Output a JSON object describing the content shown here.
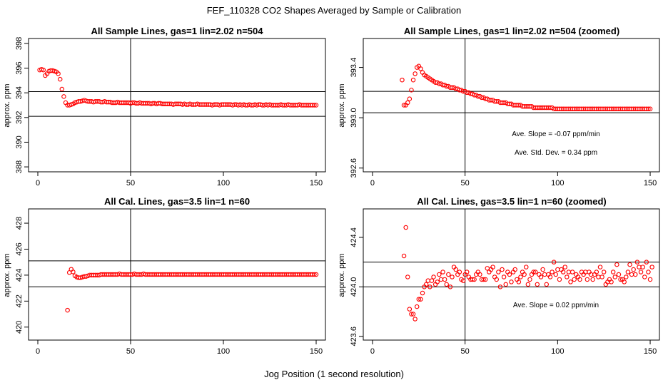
{
  "page": {
    "title": "FEF_110328  CO2 Shapes Averaged by Sample or Calibration",
    "xlabel": "Jog Position (1 second resolution)"
  },
  "colors": {
    "points": "#ff0000",
    "lines": "#000000",
    "background": "#ffffff"
  },
  "chart_data": [
    {
      "type": "scatter",
      "title": "All Sample Lines, gas=1 lin=2.02 n=504",
      "ylabel": "approx. ppm",
      "xlim": [
        -5,
        155
      ],
      "ylim": [
        387.6,
        398.4
      ],
      "xticks": [
        "0",
        "50",
        "100",
        "150"
      ],
      "yticks": [
        "388",
        "390",
        "392",
        "394",
        "396",
        "398"
      ],
      "hlines": [
        394.1,
        392.1
      ],
      "vline": 50,
      "annotations": [],
      "x_start": 1,
      "y": [
        395.85,
        395.9,
        395.85,
        395.4,
        395.55,
        395.75,
        395.8,
        395.8,
        395.75,
        395.7,
        395.55,
        395.1,
        394.3,
        393.7,
        393.2,
        393.0,
        393.0,
        393.05,
        393.1,
        393.2,
        393.25,
        393.3,
        393.3,
        393.35,
        393.4,
        393.35,
        393.3,
        393.3,
        393.3,
        393.25,
        393.3,
        393.3,
        393.3,
        393.25,
        393.25,
        393.3,
        393.25,
        393.25,
        393.25,
        393.2,
        393.2,
        393.2,
        393.25,
        393.2,
        393.2,
        393.2,
        393.2,
        393.2,
        393.2,
        393.15,
        393.2,
        393.2,
        393.15,
        393.15,
        393.2,
        393.15,
        393.15,
        393.15,
        393.15,
        393.15,
        393.1,
        393.15,
        393.15,
        393.1,
        393.15,
        393.15,
        393.1,
        393.1,
        393.1,
        393.1,
        393.1,
        393.1,
        393.05,
        393.1,
        393.1,
        393.1,
        393.1,
        393.05,
        393.1,
        393.05,
        393.05,
        393.1,
        393.05,
        393.05,
        393.05,
        393.1,
        393.05,
        393.05,
        393.05,
        393.05,
        393.05,
        393.05,
        393.05,
        393.0,
        393.05,
        393.05,
        393.05,
        393.0,
        393.05,
        393.05,
        393.05,
        393.05,
        393.05,
        393.05,
        393.0,
        393.05,
        393.05,
        393.0,
        393.05,
        393.0,
        393.05,
        393.0,
        393.0,
        393.05,
        393.0,
        393.0,
        393.05,
        393.0,
        393.05,
        393.05,
        393.0,
        393.0,
        393.05,
        393.0,
        393.05,
        393.0,
        393.0,
        393.0,
        393.0,
        393.0,
        393.05,
        393.0,
        393.0,
        393.0,
        393.05,
        393.0,
        393.0,
        393.0,
        393.0,
        393.0,
        393.05,
        393.0,
        393.0,
        393.0,
        393.0,
        393.0,
        393.0,
        393.0,
        393.0,
        393.0
      ]
    },
    {
      "type": "scatter",
      "title": "All Sample Lines, gas=1 lin=2.02 n=504 (zoomed)",
      "ylabel": "approx. ppm",
      "xlim": [
        -5,
        155
      ],
      "ylim": [
        392.57,
        393.63
      ],
      "xticks": [
        "0",
        "50",
        "100",
        "150"
      ],
      "yticks": [
        "392.6",
        "393.0",
        "393.4"
      ],
      "hlines": [
        393.21,
        393.04
      ],
      "vline": 50,
      "annotations": [
        "Ave. Slope =  -0.07  ppm/min",
        "Ave. Std. Dev. =  0.34  ppm"
      ],
      "x_start": 16,
      "y": [
        393.3,
        393.1,
        393.1,
        393.12,
        393.15,
        393.22,
        393.3,
        393.35,
        393.4,
        393.41,
        393.39,
        393.36,
        393.34,
        393.33,
        393.32,
        393.31,
        393.3,
        393.29,
        393.28,
        393.28,
        393.27,
        393.27,
        393.26,
        393.26,
        393.25,
        393.25,
        393.24,
        393.24,
        393.24,
        393.23,
        393.23,
        393.22,
        393.22,
        393.21,
        393.21,
        393.2,
        393.2,
        393.19,
        393.19,
        393.18,
        393.18,
        393.17,
        393.17,
        393.16,
        393.16,
        393.15,
        393.15,
        393.14,
        393.14,
        393.14,
        393.13,
        393.13,
        393.13,
        393.12,
        393.12,
        393.12,
        393.12,
        393.11,
        393.11,
        393.11,
        393.1,
        393.1,
        393.1,
        393.1,
        393.1,
        393.09,
        393.09,
        393.09,
        393.09,
        393.09,
        393.09,
        393.08,
        393.08,
        393.08,
        393.08,
        393.08,
        393.08,
        393.08,
        393.08,
        393.08,
        393.08,
        393.08,
        393.07,
        393.07,
        393.07,
        393.07,
        393.07,
        393.07,
        393.07,
        393.07,
        393.07,
        393.07,
        393.07,
        393.07,
        393.07,
        393.07,
        393.07,
        393.07,
        393.07,
        393.07,
        393.07,
        393.07,
        393.07,
        393.07,
        393.07,
        393.07,
        393.07,
        393.07,
        393.07,
        393.07,
        393.07,
        393.07,
        393.07,
        393.07,
        393.07,
        393.07,
        393.07,
        393.07,
        393.07,
        393.07,
        393.07,
        393.07,
        393.07,
        393.07,
        393.07,
        393.07,
        393.07,
        393.07,
        393.07,
        393.07,
        393.07,
        393.07,
        393.07,
        393.07,
        393.07
      ]
    },
    {
      "type": "scatter",
      "title": "All Cal. Lines, gas=3.5 lin=1 n=60",
      "ylabel": "approx. ppm",
      "xlim": [
        -5,
        155
      ],
      "ylim": [
        419.0,
        429.1
      ],
      "xticks": [
        "0",
        "50",
        "100",
        "150"
      ],
      "yticks": [
        "420",
        "422",
        "424",
        "426",
        "428"
      ],
      "hlines": [
        425.1,
        423.1
      ],
      "vline": 50,
      "annotations": [],
      "x_start": 16,
      "y": [
        421.3,
        424.2,
        424.45,
        424.25,
        423.95,
        423.85,
        423.8,
        423.8,
        423.85,
        423.9,
        423.9,
        423.95,
        424.0,
        424.0,
        424.0,
        424.0,
        424.0,
        424.0,
        424.05,
        424.05,
        424.05,
        424.05,
        424.05,
        424.05,
        424.05,
        424.05,
        424.05,
        424.05,
        424.1,
        424.05,
        424.05,
        424.05,
        424.05,
        424.05,
        424.05,
        424.05,
        424.1,
        424.05,
        424.05,
        424.05,
        424.05,
        424.1,
        424.05,
        424.05,
        424.05,
        424.05,
        424.05,
        424.05,
        424.05,
        424.05,
        424.05,
        424.05,
        424.05,
        424.05,
        424.05,
        424.05,
        424.05,
        424.05,
        424.05,
        424.05,
        424.05,
        424.05,
        424.05,
        424.05,
        424.05,
        424.05,
        424.05,
        424.05,
        424.05,
        424.05,
        424.05,
        424.05,
        424.05,
        424.05,
        424.05,
        424.05,
        424.05,
        424.05,
        424.05,
        424.05,
        424.05,
        424.05,
        424.05,
        424.05,
        424.05,
        424.05,
        424.05,
        424.05,
        424.05,
        424.05,
        424.05,
        424.05,
        424.05,
        424.05,
        424.05,
        424.05,
        424.05,
        424.05,
        424.05,
        424.05,
        424.05,
        424.05,
        424.05,
        424.05,
        424.05,
        424.05,
        424.05,
        424.05,
        424.05,
        424.05,
        424.05,
        424.05,
        424.05,
        424.05,
        424.05,
        424.05,
        424.05,
        424.05,
        424.05,
        424.05,
        424.05,
        424.05,
        424.05,
        424.05,
        424.05,
        424.05,
        424.05,
        424.05,
        424.05,
        424.05,
        424.05,
        424.05,
        424.05,
        424.05,
        424.05
      ]
    },
    {
      "type": "scatter",
      "title": "All Cal. Lines, gas=3.5 lin=1 n=60 (zoomed)",
      "ylabel": "approx. ppm",
      "xlim": [
        -5,
        155
      ],
      "ylim": [
        423.57,
        424.63
      ],
      "xticks": [
        "0",
        "50",
        "100",
        "150"
      ],
      "yticks": [
        "423.6",
        "424.0",
        "424.4"
      ],
      "hlines": [
        424.2,
        424.0
      ],
      "vline": 50,
      "annotations": [
        "Ave. Slope =  0.02  ppm/min"
      ],
      "x_start": 17,
      "y": [
        424.25,
        424.48,
        424.08,
        423.82,
        423.78,
        423.78,
        423.74,
        423.84,
        423.9,
        423.9,
        423.95,
        424.0,
        424.02,
        424.05,
        424.0,
        424.05,
        424.08,
        424.02,
        424.04,
        424.1,
        424.06,
        424.12,
        424.06,
        424.02,
        424.1,
        424.0,
        424.08,
        424.16,
        424.14,
        424.1,
        424.12,
        424.06,
        424.05,
        424.1,
        424.12,
        424.08,
        424.06,
        424.06,
        424.06,
        424.1,
        424.12,
        424.1,
        424.06,
        424.06,
        424.06,
        424.15,
        424.12,
        424.14,
        424.16,
        424.08,
        424.06,
        424.12,
        424.0,
        424.14,
        424.08,
        424.02,
        424.12,
        424.1,
        424.04,
        424.12,
        424.14,
        424.06,
        424.04,
        424.08,
        424.12,
        424.1,
        424.16,
        424.02,
        424.06,
        424.1,
        424.12,
        424.12,
        424.02,
        424.1,
        424.08,
        424.14,
        424.1,
        424.02,
        424.1,
        424.08,
        424.12,
        424.2,
        424.1,
        424.14,
        424.06,
        424.14,
        424.12,
        424.16,
        424.08,
        424.12,
        424.04,
        424.12,
        424.06,
        424.1,
        424.08,
        424.06,
        424.12,
        424.1,
        424.12,
        424.06,
        424.12,
        424.1,
        424.06,
        424.1,
        424.12,
        424.08,
        424.16,
        424.08,
        424.12,
        424.02,
        424.04,
        424.06,
        424.04,
        424.12,
        424.08,
        424.18,
        424.1,
        424.06,
        424.06,
        424.04,
        424.08,
        424.12,
        424.18,
        424.1,
        424.14,
        424.1,
        424.2,
        424.16,
        424.12,
        424.16,
        424.08,
        424.2,
        424.12,
        424.06,
        424.16
      ]
    }
  ]
}
